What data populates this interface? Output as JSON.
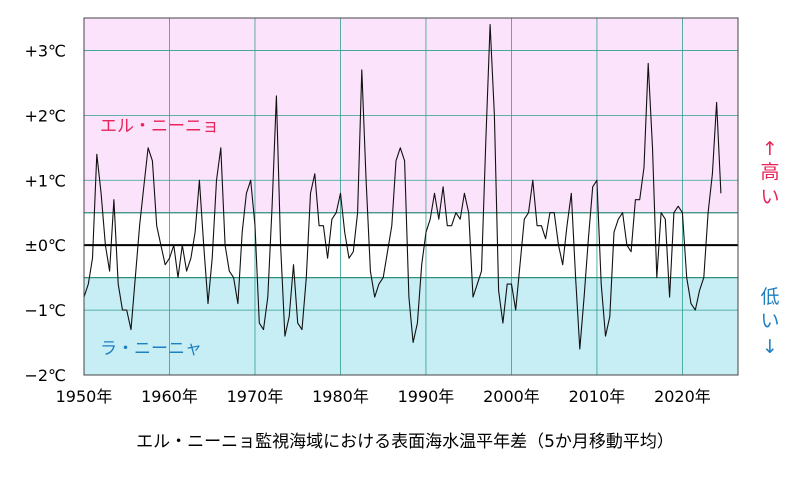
{
  "chart_data": {
    "type": "line",
    "title": "エル・ニーニョ監視海域における表面海水温平年差（5か月移動平均）",
    "xlabel": "",
    "ylabel": "",
    "x_ticks": [
      1950,
      1960,
      1970,
      1980,
      1990,
      2000,
      2010,
      2020
    ],
    "x_tick_labels": [
      "1950年",
      "1960年",
      "1970年",
      "1980年",
      "1990年",
      "2000年",
      "2010年",
      "2020年"
    ],
    "xlim": [
      1950,
      2026.5
    ],
    "ylim": [
      -2,
      3.5
    ],
    "y_ticks": [
      -2,
      -1,
      0,
      1,
      2,
      3
    ],
    "y_tick_labels": [
      "−2℃",
      "−1℃",
      "±0℃",
      "+1℃",
      "+2℃",
      "+3℃"
    ],
    "thresholds": {
      "upper": 0.5,
      "lower": -0.5
    },
    "regions": {
      "el_nino": {
        "label": "エル・ニーニョ",
        "color": "#fbe4fb",
        "text_color": "#e8245a"
      },
      "la_nina": {
        "label": "ラ・ニーニャ",
        "color": "#c8eef5",
        "text_color": "#1f80c0"
      }
    },
    "side_labels": {
      "high": [
        "↑",
        "高",
        "い"
      ],
      "low": [
        "低",
        "い",
        "↓"
      ],
      "high_color": "#e8245a",
      "low_color": "#1f80c0"
    },
    "grid": true,
    "series": [
      {
        "name": "",
        "x": [
          1950.0,
          1950.5,
          1951.0,
          1951.5,
          1952.0,
          1952.5,
          1953.0,
          1953.5,
          1954.0,
          1954.5,
          1955.0,
          1955.5,
          1956.0,
          1956.5,
          1957.0,
          1957.5,
          1958.0,
          1958.5,
          1959.0,
          1959.5,
          1960.0,
          1960.5,
          1961.0,
          1961.5,
          1962.0,
          1962.5,
          1963.0,
          1963.5,
          1964.0,
          1964.5,
          1965.0,
          1965.5,
          1966.0,
          1966.5,
          1967.0,
          1967.5,
          1968.0,
          1968.5,
          1969.0,
          1969.5,
          1970.0,
          1970.5,
          1971.0,
          1971.5,
          1972.0,
          1972.5,
          1973.0,
          1973.5,
          1974.0,
          1974.5,
          1975.0,
          1975.5,
          1976.0,
          1976.5,
          1977.0,
          1977.5,
          1978.0,
          1978.5,
          1979.0,
          1979.5,
          1980.0,
          1980.5,
          1981.0,
          1981.5,
          1982.0,
          1982.5,
          1983.0,
          1983.5,
          1984.0,
          1984.5,
          1985.0,
          1985.5,
          1986.0,
          1986.5,
          1987.0,
          1987.5,
          1988.0,
          1988.5,
          1989.0,
          1989.5,
          1990.0,
          1990.5,
          1991.0,
          1991.5,
          1992.0,
          1992.5,
          1993.0,
          1993.5,
          1994.0,
          1994.5,
          1995.0,
          1995.5,
          1996.0,
          1996.5,
          1997.0,
          1997.5,
          1998.0,
          1998.5,
          1999.0,
          1999.5,
          2000.0,
          2000.5,
          2001.0,
          2001.5,
          2002.0,
          2002.5,
          2003.0,
          2003.5,
          2004.0,
          2004.5,
          2005.0,
          2005.5,
          2006.0,
          2006.5,
          2007.0,
          2007.5,
          2008.0,
          2008.5,
          2009.0,
          2009.5,
          2010.0,
          2010.5,
          2011.0,
          2011.5,
          2012.0,
          2012.5,
          2013.0,
          2013.5,
          2014.0,
          2014.5,
          2015.0,
          2015.5,
          2016.0,
          2016.5,
          2017.0,
          2017.5,
          2018.0,
          2018.5,
          2019.0,
          2019.5,
          2020.0,
          2020.5,
          2021.0,
          2021.5,
          2022.0,
          2022.5,
          2023.0,
          2023.5,
          2024.0,
          2024.5
        ],
        "values": [
          -0.8,
          -0.6,
          -0.2,
          1.4,
          0.8,
          0.0,
          -0.4,
          0.7,
          -0.6,
          -1.0,
          -1.0,
          -1.3,
          -0.5,
          0.3,
          0.9,
          1.5,
          1.3,
          0.3,
          0.0,
          -0.3,
          -0.2,
          0.0,
          -0.5,
          0.0,
          -0.4,
          -0.2,
          0.2,
          1.0,
          0.0,
          -0.9,
          -0.2,
          1.0,
          1.5,
          0.0,
          -0.4,
          -0.5,
          -0.9,
          0.2,
          0.8,
          1.0,
          0.3,
          -1.2,
          -1.3,
          -0.8,
          0.6,
          2.3,
          0.0,
          -1.4,
          -1.1,
          -0.3,
          -1.2,
          -1.3,
          -0.5,
          0.8,
          1.1,
          0.3,
          0.3,
          -0.2,
          0.4,
          0.5,
          0.8,
          0.2,
          -0.2,
          -0.1,
          0.5,
          2.7,
          1.0,
          -0.4,
          -0.8,
          -0.6,
          -0.5,
          -0.1,
          0.3,
          1.3,
          1.5,
          1.3,
          -0.8,
          -1.5,
          -1.2,
          -0.3,
          0.2,
          0.4,
          0.8,
          0.4,
          0.9,
          0.3,
          0.3,
          0.5,
          0.4,
          0.8,
          0.5,
          -0.8,
          -0.6,
          -0.4,
          1.6,
          3.4,
          2.0,
          -0.7,
          -1.2,
          -0.6,
          -0.6,
          -1.0,
          -0.3,
          0.4,
          0.5,
          1.0,
          0.3,
          0.3,
          0.1,
          0.5,
          0.5,
          0.0,
          -0.3,
          0.3,
          0.8,
          -0.5,
          -1.6,
          -0.8,
          0.1,
          0.9,
          1.0,
          -0.6,
          -1.4,
          -1.1,
          0.2,
          0.4,
          0.5,
          0.0,
          -0.1,
          0.7,
          0.7,
          1.2,
          2.8,
          1.5,
          -0.5,
          0.5,
          0.4,
          -0.8,
          0.5,
          0.6,
          0.5,
          -0.5,
          -0.9,
          -1.0,
          -0.7,
          -0.5,
          0.5,
          1.1,
          2.2,
          0.8
        ]
      }
    ]
  }
}
